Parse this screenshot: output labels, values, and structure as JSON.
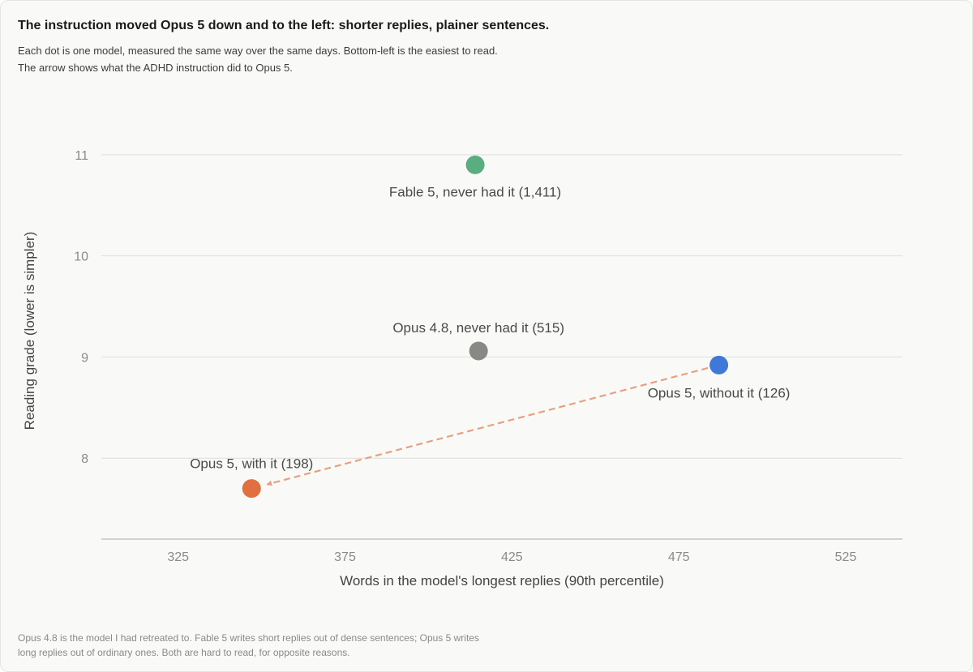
{
  "header": {
    "title": "The instruction moved Opus 5 down and to the left: shorter replies, plainer sentences.",
    "subtitle_line1": "Each dot is one model, measured the same way over the same days. Bottom-left is the easiest to read.",
    "subtitle_line2": "The arrow shows what the ADHD instruction did to Opus 5."
  },
  "footer": {
    "note_line1": "Opus 4.8 is the model I had retreated to. Fable 5 writes short replies out of dense sentences; Opus 5 writes",
    "note_line2": "long replies out of ordinary ones. Both are hard to read, for opposite reasons."
  },
  "chart_data": {
    "type": "scatter",
    "xlabel": "Words in the model's longest replies (90th percentile)",
    "ylabel": "Reading grade (lower is simpler)",
    "xlim": [
      302,
      542
    ],
    "ylim": [
      7.2,
      11.4
    ],
    "xticks": [
      325,
      375,
      425,
      475,
      525
    ],
    "yticks": [
      8,
      9,
      10,
      11
    ],
    "grid": "horizontal",
    "points": [
      {
        "label": "Fable 5, never had it (1,411)",
        "x": 414,
        "y": 10.9,
        "color": "#5aad7f"
      },
      {
        "label": "Opus 4.8, never had it (515)",
        "x": 415,
        "y": 9.06,
        "color": "#888884"
      },
      {
        "label": "Opus 5, without it (126)",
        "x": 487,
        "y": 8.92,
        "color": "#3f78d6"
      },
      {
        "label": "Opus 5, with it (198)",
        "x": 347,
        "y": 7.7,
        "color": "#e0703f"
      }
    ],
    "arrow": {
      "from": 2,
      "to": 3,
      "color": "#e6a181"
    }
  }
}
